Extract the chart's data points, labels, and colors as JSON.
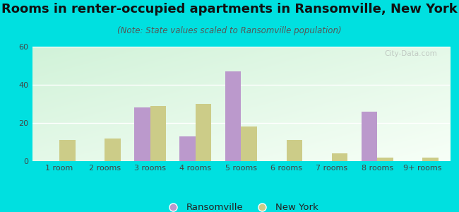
{
  "title": "Rooms in renter-occupied apartments in Ransomville, New York",
  "subtitle": "(Note: State values scaled to Ransomville population)",
  "categories": [
    "1 room",
    "2 rooms",
    "3 rooms",
    "4 rooms",
    "5 rooms",
    "6 rooms",
    "7 rooms",
    "8 rooms",
    "9+ rooms"
  ],
  "ransomville": [
    0,
    0,
    28,
    13,
    47,
    0,
    0,
    26,
    0
  ],
  "new_york": [
    11,
    12,
    29,
    30,
    18,
    11,
    4,
    2,
    2
  ],
  "ransomville_color": "#bb99cc",
  "new_york_color": "#cccc88",
  "background_color": "#00e0e0",
  "ylim": [
    0,
    60
  ],
  "yticks": [
    0,
    20,
    40,
    60
  ],
  "bar_width": 0.35,
  "title_fontsize": 13,
  "subtitle_fontsize": 8.5,
  "tick_fontsize": 8,
  "legend_fontsize": 9.5,
  "watermark": "City-Data.com"
}
